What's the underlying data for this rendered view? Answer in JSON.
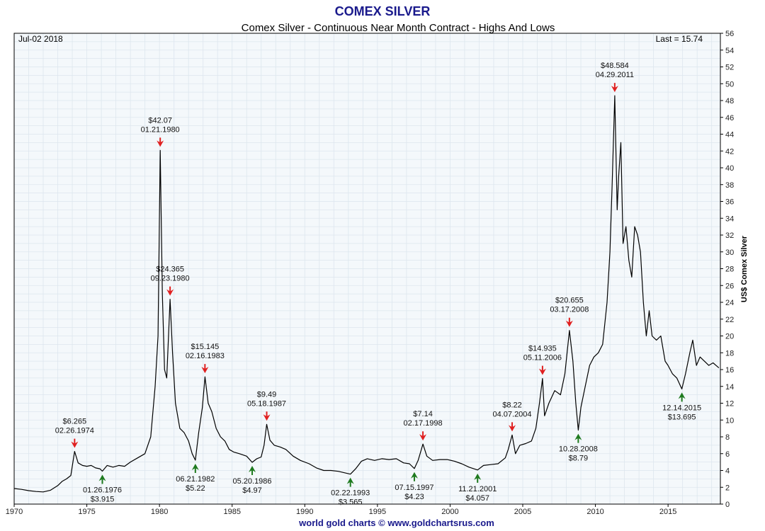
{
  "header": {
    "title": "COMEX SILVER",
    "subtitle": "Comex Silver - Continuous Near Month Contract - Highs And Lows",
    "date": "Jul-02  2018",
    "last": "Last = 15.74",
    "footer": "world gold charts © www.goldchartsrus.com"
  },
  "colors": {
    "title": "#1a1a8c",
    "footer": "#1a1a8c",
    "background": "#f4f8fb",
    "grid": "#dde6ee",
    "line": "#000000",
    "high_arrow": "#e02020",
    "low_arrow": "#1e7a1e"
  },
  "chart_data": {
    "type": "line",
    "title": "Comex Silver - Continuous Near Month Contract - Highs And Lows",
    "ylabel": "US$ Comex Silver",
    "xlabel": "",
    "xlim": [
      1970,
      2018.6
    ],
    "ylim": [
      0,
      56
    ],
    "grid": true,
    "x_ticks": [
      1970,
      1975,
      1980,
      1985,
      1990,
      1995,
      2000,
      2005,
      2010,
      2015
    ],
    "y_ticks": [
      0,
      2,
      4,
      6,
      8,
      10,
      12,
      14,
      16,
      18,
      20,
      22,
      24,
      26,
      28,
      30,
      32,
      34,
      36,
      38,
      40,
      42,
      44,
      46,
      48,
      50,
      52,
      54,
      56
    ],
    "series": [
      {
        "x": [
          1970.0,
          1970.5,
          1971.0,
          1971.5,
          1972.0,
          1972.5,
          1973.0,
          1973.3,
          1973.6,
          1973.9,
          1974.16,
          1974.4,
          1974.7,
          1975.0,
          1975.3,
          1975.6,
          1975.9,
          1976.07,
          1976.4,
          1976.8,
          1977.2,
          1977.6,
          1978.0,
          1978.5,
          1979.0,
          1979.4,
          1979.7,
          1979.9,
          1980.05,
          1980.2,
          1980.35,
          1980.5,
          1980.73,
          1980.9,
          1981.1,
          1981.4,
          1981.7,
          1982.0,
          1982.25,
          1982.47,
          1982.7,
          1982.95,
          1983.13,
          1983.35,
          1983.6,
          1983.9,
          1984.2,
          1984.5,
          1984.8,
          1985.1,
          1985.5,
          1986.0,
          1986.38,
          1986.7,
          1987.0,
          1987.2,
          1987.38,
          1987.6,
          1987.9,
          1988.3,
          1988.7,
          1989.2,
          1989.7,
          1990.3,
          1990.8,
          1991.3,
          1991.8,
          1992.3,
          1992.8,
          1993.14,
          1993.5,
          1993.9,
          1994.3,
          1994.8,
          1995.3,
          1995.8,
          1996.3,
          1996.8,
          1997.2,
          1997.54,
          1997.8,
          1998.13,
          1998.4,
          1998.8,
          1999.3,
          1999.8,
          2000.3,
          2000.8,
          2001.3,
          2001.89,
          2002.3,
          2002.8,
          2003.3,
          2003.8,
          2004.0,
          2004.27,
          2004.5,
          2004.8,
          2005.2,
          2005.6,
          2005.9,
          2006.15,
          2006.36,
          2006.5,
          2006.8,
          2007.2,
          2007.6,
          2007.9,
          2008.21,
          2008.45,
          2008.65,
          2008.82,
          2009.0,
          2009.3,
          2009.6,
          2009.9,
          2010.2,
          2010.5,
          2010.8,
          2011.0,
          2011.15,
          2011.33,
          2011.5,
          2011.6,
          2011.75,
          2011.9,
          2012.1,
          2012.3,
          2012.5,
          2012.7,
          2012.9,
          2013.1,
          2013.3,
          2013.5,
          2013.7,
          2013.9,
          2014.2,
          2014.5,
          2014.8,
          2015.0,
          2015.3,
          2015.6,
          2015.95,
          2016.2,
          2016.5,
          2016.7,
          2016.95,
          2017.2,
          2017.5,
          2017.8,
          2018.1,
          2018.3,
          2018.5
        ],
        "values": [
          1.85,
          1.75,
          1.6,
          1.5,
          1.45,
          1.65,
          2.2,
          2.7,
          3.0,
          3.4,
          6.265,
          4.9,
          4.6,
          4.5,
          4.6,
          4.3,
          4.2,
          3.915,
          4.6,
          4.4,
          4.6,
          4.5,
          5.0,
          5.5,
          6.0,
          8.0,
          14.0,
          20.0,
          42.07,
          25.0,
          16.0,
          15.0,
          24.365,
          18.0,
          12.0,
          9.0,
          8.5,
          7.5,
          6.0,
          5.22,
          8.5,
          11.5,
          15.145,
          12.0,
          11.0,
          9.0,
          8.0,
          7.5,
          6.5,
          6.2,
          6.0,
          5.7,
          4.97,
          5.4,
          5.6,
          7.0,
          9.49,
          7.6,
          7.0,
          6.8,
          6.5,
          5.7,
          5.2,
          4.8,
          4.3,
          4.0,
          4.0,
          3.9,
          3.7,
          3.565,
          4.2,
          5.1,
          5.4,
          5.2,
          5.4,
          5.3,
          5.4,
          4.9,
          4.8,
          4.23,
          5.2,
          7.14,
          5.7,
          5.2,
          5.3,
          5.3,
          5.1,
          4.8,
          4.4,
          4.057,
          4.6,
          4.7,
          4.8,
          5.5,
          6.5,
          8.22,
          6.0,
          7.0,
          7.2,
          7.5,
          9.0,
          12.0,
          14.935,
          10.5,
          12.0,
          13.5,
          13.0,
          15.5,
          20.655,
          17.0,
          12.0,
          8.79,
          11.5,
          14.0,
          16.5,
          17.5,
          18.0,
          19.0,
          24.0,
          30.0,
          38.0,
          48.584,
          35.0,
          39.0,
          43.0,
          31.0,
          33.0,
          29.0,
          27.0,
          33.0,
          32.0,
          30.0,
          24.0,
          20.0,
          23.0,
          20.0,
          19.5,
          20.0,
          17.0,
          16.5,
          15.5,
          15.0,
          13.695,
          15.5,
          18.0,
          19.5,
          16.5,
          17.5,
          17.0,
          16.5,
          16.8,
          16.5,
          16.2
        ]
      }
    ],
    "annotations": [
      {
        "kind": "high",
        "x": 1974.16,
        "y": 6.265,
        "price": "$6.265",
        "date": "02.26.1974"
      },
      {
        "kind": "low",
        "x": 1976.07,
        "y": 3.915,
        "price": "$3.915",
        "date": "01.26.1976"
      },
      {
        "kind": "high",
        "x": 1980.05,
        "y": 42.07,
        "price": "$42.07",
        "date": "01.21.1980"
      },
      {
        "kind": "high",
        "x": 1980.73,
        "y": 24.365,
        "price": "$24.365",
        "date": "09.23.1980"
      },
      {
        "kind": "low",
        "x": 1982.47,
        "y": 5.22,
        "price": "$5.22",
        "date": "06.21.1982"
      },
      {
        "kind": "high",
        "x": 1983.13,
        "y": 15.145,
        "price": "$15.145",
        "date": "02.16.1983"
      },
      {
        "kind": "low",
        "x": 1986.38,
        "y": 4.97,
        "price": "$4.97",
        "date": "05.20.1986"
      },
      {
        "kind": "high",
        "x": 1987.38,
        "y": 9.49,
        "price": "$9.49",
        "date": "05.18.1987"
      },
      {
        "kind": "low",
        "x": 1993.14,
        "y": 3.565,
        "price": "$3.565",
        "date": "02.22.1993"
      },
      {
        "kind": "low",
        "x": 1997.54,
        "y": 4.23,
        "price": "$4.23",
        "date": "07.15.1997"
      },
      {
        "kind": "high",
        "x": 1998.13,
        "y": 7.14,
        "price": "$7.14",
        "date": "02.17.1998"
      },
      {
        "kind": "low",
        "x": 2001.89,
        "y": 4.057,
        "price": "$4.057",
        "date": "11.21.2001"
      },
      {
        "kind": "high",
        "x": 2004.27,
        "y": 8.22,
        "price": "$8.22",
        "date": "04.07.2004"
      },
      {
        "kind": "high",
        "x": 2006.36,
        "y": 14.935,
        "price": "$14.935",
        "date": "05.11.2006"
      },
      {
        "kind": "high",
        "x": 2008.21,
        "y": 20.655,
        "price": "$20.655",
        "date": "03.17.2008"
      },
      {
        "kind": "low",
        "x": 2008.82,
        "y": 8.79,
        "price": "$8.79",
        "date": "10.28.2008"
      },
      {
        "kind": "high",
        "x": 2011.33,
        "y": 48.584,
        "price": "$48.584",
        "date": "04.29.2011"
      },
      {
        "kind": "low",
        "x": 2015.95,
        "y": 13.695,
        "price": "$13.695",
        "date": "12.14.2015"
      }
    ]
  }
}
